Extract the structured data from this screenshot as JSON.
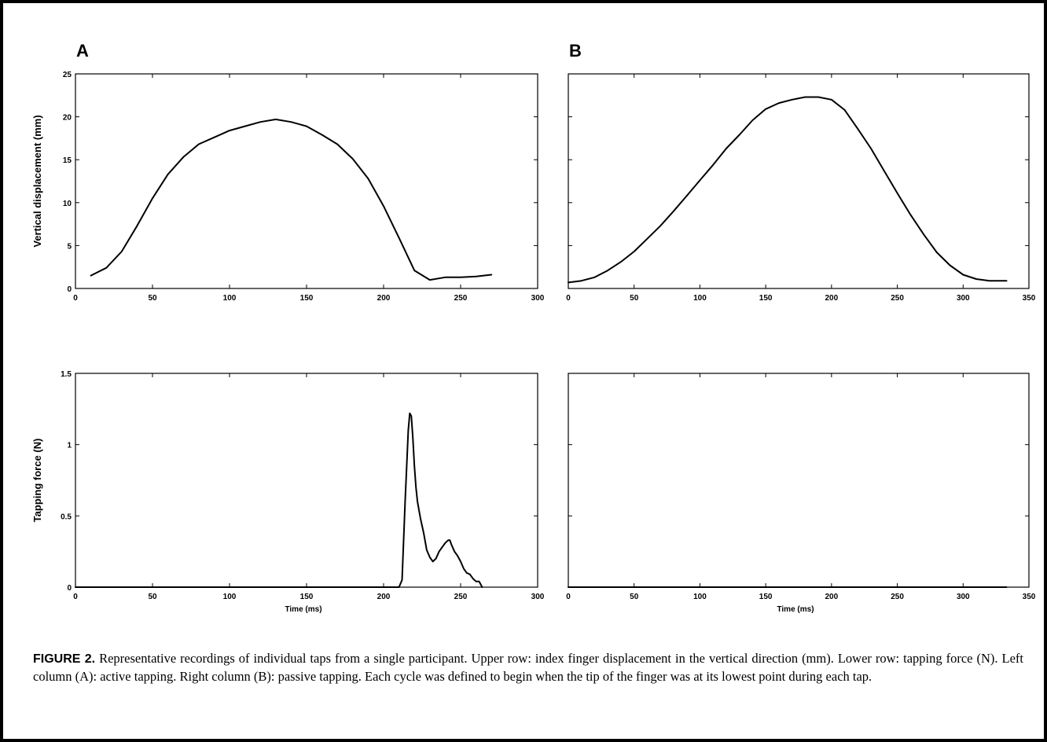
{
  "chart_data": [
    {
      "type": "line",
      "panel": "A",
      "ylabel": "Vertical displacement (mm)",
      "xlabel": "",
      "xlim": [
        0,
        300
      ],
      "ylim": [
        0,
        25
      ],
      "xticks": [
        "0",
        "50",
        "100",
        "150",
        "200",
        "250",
        "300"
      ],
      "yticks": [
        "0",
        "5",
        "10",
        "15",
        "20",
        "25"
      ],
      "series": [
        {
          "x": [
            10,
            20,
            30,
            40,
            50,
            60,
            70,
            80,
            90,
            100,
            110,
            120,
            130,
            140,
            150,
            160,
            170,
            180,
            190,
            200,
            210,
            220,
            230,
            240,
            250,
            260,
            270
          ],
          "y": [
            1.5,
            2.4,
            4.3,
            7.3,
            10.5,
            13.3,
            15.3,
            16.8,
            17.6,
            18.4,
            18.9,
            19.4,
            19.7,
            19.4,
            18.9,
            17.9,
            16.8,
            15.1,
            12.8,
            9.6,
            5.9,
            2.1,
            1.0,
            1.3,
            1.3,
            1.4,
            1.6
          ]
        }
      ]
    },
    {
      "type": "line",
      "panel": "B",
      "ylabel": "",
      "xlabel": "",
      "xlim": [
        0,
        350
      ],
      "ylim": [
        0,
        25
      ],
      "xticks": [
        "0",
        "50",
        "100",
        "150",
        "200",
        "250",
        "300",
        "350"
      ],
      "yticks": [],
      "series": [
        {
          "x": [
            0,
            10,
            20,
            30,
            40,
            50,
            60,
            70,
            80,
            90,
            100,
            110,
            120,
            130,
            140,
            150,
            160,
            170,
            180,
            190,
            200,
            210,
            220,
            230,
            240,
            250,
            260,
            270,
            280,
            290,
            300,
            310,
            320,
            333
          ],
          "y": [
            0.7,
            0.9,
            1.3,
            2.1,
            3.1,
            4.3,
            5.8,
            7.3,
            9.0,
            10.8,
            12.6,
            14.4,
            16.3,
            17.9,
            19.6,
            20.9,
            21.6,
            22.0,
            22.3,
            22.3,
            22.0,
            20.8,
            18.6,
            16.3,
            13.7,
            11.1,
            8.6,
            6.3,
            4.2,
            2.7,
            1.6,
            1.1,
            0.9,
            0.9
          ]
        }
      ]
    },
    {
      "type": "line",
      "panel": "A",
      "ylabel": "Tapping force (N)",
      "xlabel": "Time (ms)",
      "xlim": [
        0,
        300
      ],
      "ylim": [
        0,
        1.5
      ],
      "xticks": [
        "0",
        "50",
        "100",
        "150",
        "200",
        "250",
        "300"
      ],
      "yticks": [
        "0",
        "0.5",
        "1",
        "1.5"
      ],
      "series": [
        {
          "x": [
            0,
            205,
            210,
            212,
            214,
            216,
            217,
            218,
            219,
            220,
            221,
            222,
            224,
            226,
            228,
            230,
            232,
            234,
            236,
            238,
            240,
            242,
            243,
            244,
            246,
            248,
            250,
            252,
            254,
            256,
            258,
            260,
            262,
            263,
            264
          ],
          "y": [
            0,
            0,
            0,
            0.05,
            0.6,
            1.1,
            1.22,
            1.2,
            1.05,
            0.85,
            0.7,
            0.6,
            0.48,
            0.38,
            0.26,
            0.21,
            0.18,
            0.2,
            0.25,
            0.28,
            0.31,
            0.33,
            0.33,
            0.3,
            0.25,
            0.22,
            0.18,
            0.13,
            0.1,
            0.09,
            0.06,
            0.04,
            0.04,
            0.02,
            0.0
          ]
        }
      ]
    },
    {
      "type": "line",
      "panel": "B",
      "ylabel": "",
      "xlabel": "Time (ms)",
      "xlim": [
        0,
        350
      ],
      "ylim": [
        0,
        1.5
      ],
      "xticks": [
        "0",
        "50",
        "100",
        "150",
        "200",
        "250",
        "300",
        "350"
      ],
      "yticks": [],
      "series": [
        {
          "x": [
            0,
            333
          ],
          "y": [
            0,
            0
          ]
        }
      ]
    }
  ],
  "panel_labels": {
    "a": "A",
    "b": "B"
  },
  "caption": {
    "label": "FIGURE 2.",
    "text": " Representative recordings of individual taps from a single participant. Upper row: index finger displacement in the vertical direction (mm). Lower row: tapping force (N). Left column (A): active tapping. Right column (B): passive tapping. Each cycle was defined to begin when the tip of the finger was at its lowest point during each tap."
  }
}
